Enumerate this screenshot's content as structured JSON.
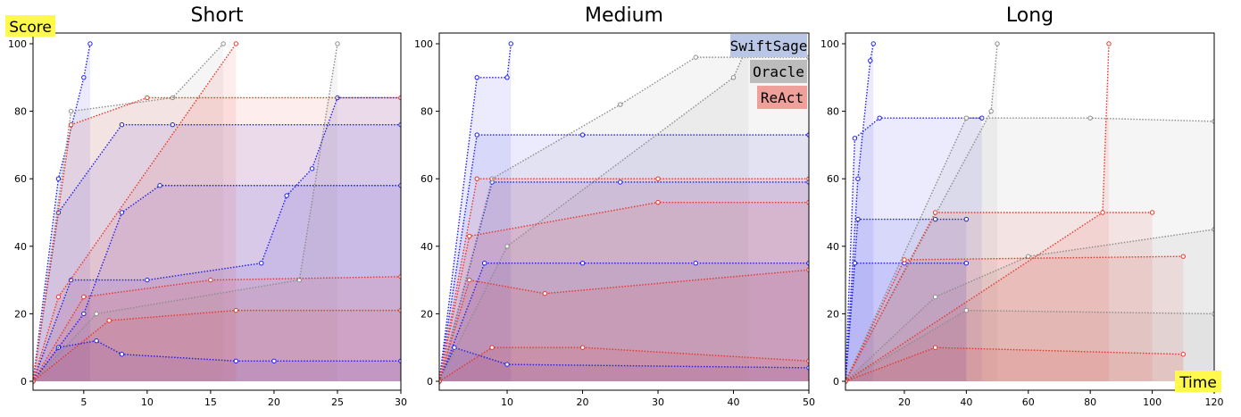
{
  "figure": {
    "y_callout": "Score",
    "x_callout": "Time",
    "colors": {
      "SwiftSage": "#1f1fe6",
      "Oracle": "#8c8c8c",
      "ReAct": "#e8352a"
    },
    "callout_bg": "#fff94d",
    "legend": [
      {
        "label": "SwiftSage",
        "bg": "#b9c6e6"
      },
      {
        "label": "Oracle",
        "bg": "#bcbcbc"
      },
      {
        "label": "ReAct",
        "bg": "#f0a09a"
      }
    ]
  },
  "chart_data": [
    {
      "type": "line",
      "title": "Short",
      "xlim": [
        1,
        30
      ],
      "ylim": [
        0,
        100
      ],
      "xticks": [
        5,
        10,
        15,
        20,
        25,
        30
      ],
      "yticks": [
        0,
        20,
        40,
        60,
        80,
        100
      ],
      "series": [
        {
          "group": "SwiftSage",
          "x": [
            1,
            3,
            6,
            8,
            17,
            20,
            30
          ],
          "y": [
            0,
            10,
            12,
            8,
            6,
            6,
            6
          ]
        },
        {
          "group": "SwiftSage",
          "x": [
            1,
            4,
            10,
            19,
            21,
            23,
            25,
            30
          ],
          "y": [
            0,
            30,
            30,
            35,
            55,
            63,
            84,
            84
          ]
        },
        {
          "group": "SwiftSage",
          "x": [
            1,
            5,
            8,
            11,
            30
          ],
          "y": [
            0,
            20,
            50,
            58,
            58
          ]
        },
        {
          "group": "SwiftSage",
          "x": [
            1,
            3,
            8,
            12,
            30
          ],
          "y": [
            0,
            50,
            76,
            76,
            76
          ]
        },
        {
          "group": "SwiftSage",
          "x": [
            1,
            3,
            5,
            5.5
          ],
          "y": [
            0,
            60,
            90,
            100
          ]
        },
        {
          "group": "Oracle",
          "x": [
            1,
            4,
            12,
            16
          ],
          "y": [
            0,
            80,
            84,
            100
          ]
        },
        {
          "group": "Oracle",
          "x": [
            1,
            6,
            22,
            25
          ],
          "y": [
            0,
            20,
            30,
            100
          ]
        },
        {
          "group": "ReAct",
          "x": [
            1,
            4,
            10,
            30
          ],
          "y": [
            0,
            76,
            84,
            84
          ]
        },
        {
          "group": "ReAct",
          "x": [
            1,
            5,
            15,
            30
          ],
          "y": [
            0,
            25,
            30,
            31
          ]
        },
        {
          "group": "ReAct",
          "x": [
            1,
            7,
            17,
            30
          ],
          "y": [
            0,
            18,
            21,
            21
          ]
        },
        {
          "group": "ReAct",
          "x": [
            1,
            3,
            17
          ],
          "y": [
            0,
            25,
            100
          ]
        }
      ]
    },
    {
      "type": "line",
      "title": "Medium",
      "xlim": [
        1,
        50
      ],
      "ylim": [
        0,
        100
      ],
      "xticks": [
        10,
        20,
        30,
        40,
        50
      ],
      "yticks": [
        0,
        20,
        40,
        60,
        80,
        100
      ],
      "series": [
        {
          "group": "SwiftSage",
          "x": [
            1,
            3,
            10,
            50
          ],
          "y": [
            0,
            10,
            5,
            4
          ]
        },
        {
          "group": "SwiftSage",
          "x": [
            1,
            7,
            20,
            35,
            50
          ],
          "y": [
            0,
            35,
            35,
            35,
            35
          ]
        },
        {
          "group": "SwiftSage",
          "x": [
            1,
            8,
            25,
            50
          ],
          "y": [
            0,
            59,
            59,
            59
          ]
        },
        {
          "group": "SwiftSage",
          "x": [
            1,
            6,
            20,
            50
          ],
          "y": [
            0,
            73,
            73,
            73
          ]
        },
        {
          "group": "SwiftSage",
          "x": [
            1,
            6,
            10,
            10.5
          ],
          "y": [
            0,
            90,
            90,
            100
          ]
        },
        {
          "group": "Oracle",
          "x": [
            1,
            8,
            25,
            35,
            50
          ],
          "y": [
            0,
            60,
            82,
            96,
            96
          ]
        },
        {
          "group": "Oracle",
          "x": [
            1,
            10,
            40,
            42
          ],
          "y": [
            0,
            40,
            90,
            100
          ]
        },
        {
          "group": "ReAct",
          "x": [
            1,
            5,
            30,
            50
          ],
          "y": [
            0,
            43,
            53,
            53
          ]
        },
        {
          "group": "ReAct",
          "x": [
            1,
            5,
            15,
            50
          ],
          "y": [
            0,
            30,
            26,
            33
          ]
        },
        {
          "group": "ReAct",
          "x": [
            1,
            8,
            20,
            50
          ],
          "y": [
            0,
            10,
            10,
            6
          ]
        },
        {
          "group": "ReAct",
          "x": [
            1,
            6,
            30,
            50
          ],
          "y": [
            0,
            60,
            60,
            60
          ]
        }
      ]
    },
    {
      "type": "line",
      "title": "Long",
      "xlim": [
        1,
        120
      ],
      "ylim": [
        0,
        100
      ],
      "xticks": [
        20,
        40,
        60,
        80,
        100,
        120
      ],
      "yticks": [
        0,
        20,
        40,
        60,
        80,
        100
      ],
      "series": [
        {
          "group": "SwiftSage",
          "x": [
            1,
            4,
            12,
            45
          ],
          "y": [
            0,
            72,
            78,
            78
          ]
        },
        {
          "group": "SwiftSage",
          "x": [
            1,
            5,
            30,
            40
          ],
          "y": [
            0,
            48,
            48,
            48
          ]
        },
        {
          "group": "SwiftSage",
          "x": [
            1,
            4,
            20,
            40
          ],
          "y": [
            0,
            35,
            35,
            35
          ]
        },
        {
          "group": "SwiftSage",
          "x": [
            1,
            5,
            9,
            10
          ],
          "y": [
            0,
            60,
            95,
            100
          ]
        },
        {
          "group": "Oracle",
          "x": [
            1,
            40,
            80,
            120
          ],
          "y": [
            0,
            78,
            78,
            77
          ]
        },
        {
          "group": "Oracle",
          "x": [
            1,
            30,
            60,
            120
          ],
          "y": [
            0,
            25,
            37,
            45
          ]
        },
        {
          "group": "Oracle",
          "x": [
            1,
            40,
            120
          ],
          "y": [
            0,
            21,
            20
          ]
        },
        {
          "group": "Oracle",
          "x": [
            1,
            48,
            50
          ],
          "y": [
            0,
            80,
            100
          ]
        },
        {
          "group": "ReAct",
          "x": [
            1,
            30,
            100
          ],
          "y": [
            0,
            50,
            50
          ]
        },
        {
          "group": "ReAct",
          "x": [
            1,
            20,
            110
          ],
          "y": [
            0,
            36,
            37
          ]
        },
        {
          "group": "ReAct",
          "x": [
            1,
            30,
            110
          ],
          "y": [
            0,
            10,
            8
          ]
        },
        {
          "group": "ReAct",
          "x": [
            1,
            84,
            86
          ],
          "y": [
            0,
            50,
            100
          ]
        }
      ]
    }
  ]
}
